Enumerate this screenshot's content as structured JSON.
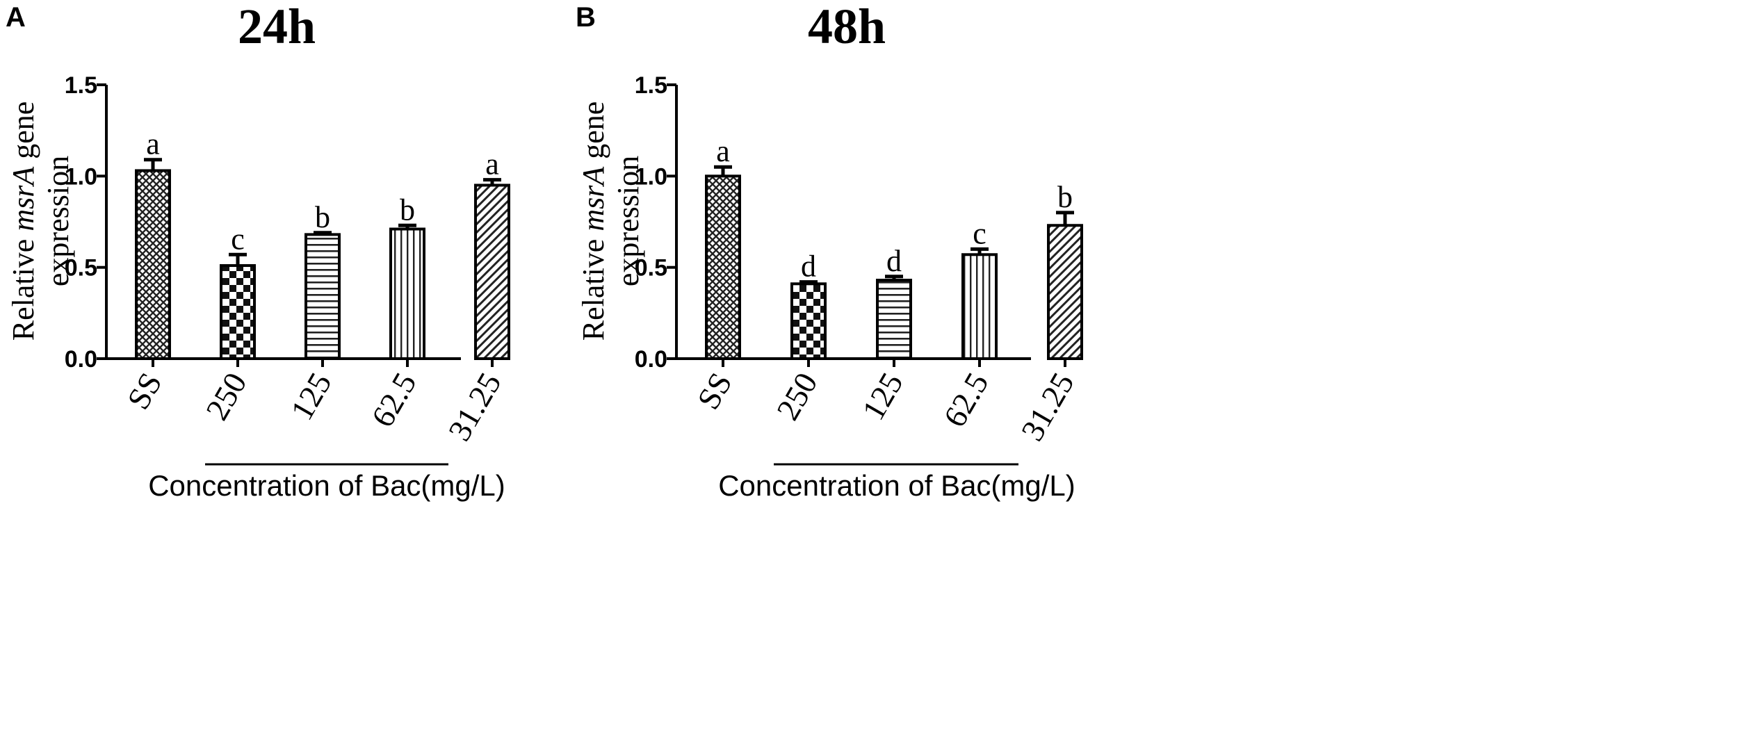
{
  "chart_data": [
    {
      "type": "bar",
      "panel_label": "A",
      "title": "24h",
      "ylabel_pre": "Relative ",
      "ylabel_gene": "msrA",
      "ylabel_post": " gene",
      "ylabel_line2": "expression",
      "xlabel": "Concentration of Bac(mg/L)",
      "ylim": [
        0,
        1.5
      ],
      "yticks": [
        "0.0",
        "0.5",
        "1.0",
        "1.5"
      ],
      "categories": [
        "SS",
        "250",
        "125",
        "62.5",
        "31.25"
      ],
      "values": [
        1.03,
        0.51,
        0.68,
        0.71,
        0.95
      ],
      "errors": [
        0.06,
        0.06,
        0.01,
        0.02,
        0.03
      ],
      "letters": [
        "a",
        "c",
        "b",
        "b",
        "a"
      ],
      "patterns": [
        "crosshatch",
        "checker",
        "horizontal",
        "vertical",
        "diagonal"
      ]
    },
    {
      "type": "bar",
      "panel_label": "B",
      "title": "48h",
      "ylabel_pre": "Relative ",
      "ylabel_gene": "msrA",
      "ylabel_post": " gene",
      "ylabel_line2": "expression",
      "xlabel": "Concentration of Bac(mg/L)",
      "ylim": [
        0,
        1.5
      ],
      "yticks": [
        "0.0",
        "0.5",
        "1.0",
        "1.5"
      ],
      "categories": [
        "SS",
        "250",
        "125",
        "62.5",
        "31.25"
      ],
      "values": [
        1.0,
        0.41,
        0.43,
        0.57,
        0.73
      ],
      "errors": [
        0.05,
        0.01,
        0.02,
        0.03,
        0.07
      ],
      "letters": [
        "a",
        "d",
        "d",
        "c",
        "b"
      ],
      "patterns": [
        "crosshatch",
        "checker",
        "horizontal",
        "vertical",
        "diagonal"
      ]
    }
  ]
}
